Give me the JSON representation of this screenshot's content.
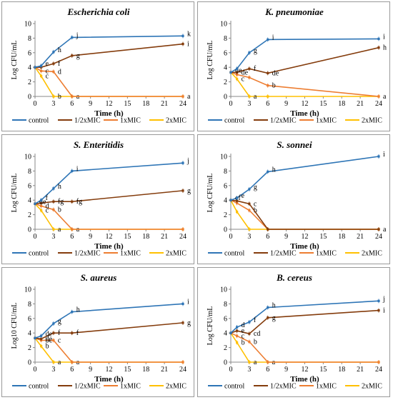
{
  "legend": [
    "control",
    "1/2xMIC",
    "1xMIC",
    "2xMIC"
  ],
  "colors": {
    "control": "#2E75B6",
    "half": "#843C0C",
    "one": "#ED7D31",
    "two": "#FFC000",
    "axis": "#888888",
    "border": "#9a9a9a"
  },
  "chart_data": [
    {
      "type": "line",
      "title": "Escherichia coli",
      "xlabel": "Time (h)",
      "ylabel": "Log CFU/mL",
      "x_ticks": [
        0,
        3,
        6,
        9,
        12,
        15,
        18,
        21,
        24
      ],
      "y_ticks": [
        0,
        2,
        4,
        6,
        8,
        10
      ],
      "xlim": [
        0,
        24
      ],
      "ylim": [
        0,
        10
      ],
      "series": [
        {
          "name": "control",
          "x": [
            0,
            1,
            3,
            6,
            24
          ],
          "y": [
            4.0,
            4.2,
            6.1,
            8.1,
            8.3
          ],
          "labels": [
            "",
            "e",
            "h",
            "j",
            "k"
          ]
        },
        {
          "name": "1/2xMIC",
          "x": [
            0,
            1,
            3,
            6,
            24
          ],
          "y": [
            4.0,
            4.0,
            4.5,
            5.6,
            7.2
          ],
          "labels": [
            "",
            "",
            "f",
            "g",
            "i"
          ]
        },
        {
          "name": "1xMIC",
          "x": [
            0,
            1,
            3,
            6,
            24
          ],
          "y": [
            4.0,
            3.5,
            3.4,
            0,
            0
          ],
          "labels": [
            "",
            "c",
            "d",
            "",
            ""
          ]
        },
        {
          "name": "2xMIC",
          "x": [
            0,
            1,
            3,
            6,
            24
          ],
          "y": [
            4.0,
            2.8,
            0,
            0,
            0
          ],
          "labels": [
            "",
            "c",
            "b",
            "a",
            "a"
          ]
        }
      ]
    },
    {
      "type": "line",
      "title": "K. pneumoniae",
      "xlabel": "Time (h)",
      "ylabel": "Log CFU/mL",
      "x_ticks": [
        0,
        3,
        6,
        9,
        12,
        15,
        18,
        21,
        24
      ],
      "y_ticks": [
        0,
        2,
        4,
        6,
        8,
        10
      ],
      "xlim": [
        0,
        24
      ],
      "ylim": [
        0,
        10
      ],
      "series": [
        {
          "name": "control",
          "x": [
            0,
            1,
            3,
            6,
            24
          ],
          "y": [
            3.3,
            3.8,
            6.0,
            7.8,
            7.9
          ],
          "labels": [
            "de",
            "",
            "g",
            "i",
            "i"
          ]
        },
        {
          "name": "1/2xMIC",
          "x": [
            0,
            1,
            3,
            6,
            24
          ],
          "y": [
            3.3,
            3.3,
            3.8,
            3.2,
            6.7
          ],
          "labels": [
            "",
            "de",
            "f",
            "de",
            "h"
          ]
        },
        {
          "name": "1xMIC",
          "x": [
            0,
            1,
            3,
            6,
            24
          ],
          "y": [
            3.3,
            3.0,
            2.6,
            1.5,
            0
          ],
          "labels": [
            "",
            "",
            "",
            "b",
            "a"
          ]
        },
        {
          "name": "2xMIC",
          "x": [
            0,
            1,
            3,
            6,
            24
          ],
          "y": [
            3.3,
            2.4,
            0,
            0,
            0
          ],
          "labels": [
            "",
            "c",
            "a",
            "",
            ""
          ]
        }
      ]
    },
    {
      "type": "line",
      "title": "S. Enteritidis",
      "xlabel": "Time (h)",
      "ylabel": "Log CFU/mL",
      "x_ticks": [
        0,
        3,
        6,
        9,
        12,
        15,
        18,
        21,
        24
      ],
      "y_ticks": [
        0,
        2,
        4,
        6,
        8,
        10
      ],
      "xlim": [
        0,
        24
      ],
      "ylim": [
        0,
        10
      ],
      "series": [
        {
          "name": "control",
          "x": [
            0,
            1,
            3,
            6,
            24
          ],
          "y": [
            3.5,
            4.0,
            5.6,
            8.0,
            9.1
          ],
          "labels": [
            "de",
            "f",
            "h",
            "i",
            "j"
          ]
        },
        {
          "name": "1/2xMIC",
          "x": [
            0,
            1,
            3,
            6,
            24
          ],
          "y": [
            3.5,
            3.6,
            3.8,
            3.8,
            5.3
          ],
          "labels": [
            "",
            "",
            "fg",
            "fg",
            "g"
          ]
        },
        {
          "name": "1xMIC",
          "x": [
            0,
            1,
            3,
            6,
            24
          ],
          "y": [
            3.5,
            3.2,
            2.7,
            0,
            0
          ],
          "labels": [
            "",
            "d",
            "b",
            "",
            ""
          ]
        },
        {
          "name": "2xMIC",
          "x": [
            0,
            1,
            3,
            6,
            24
          ],
          "y": [
            3.5,
            2.6,
            0,
            0,
            0
          ],
          "labels": [
            "",
            "c",
            "a",
            "a",
            ""
          ]
        }
      ]
    },
    {
      "type": "line",
      "title": "S. sonnei",
      "xlabel": "Time (h)",
      "ylabel": "Log CFU/mL",
      "x_ticks": [
        0,
        3,
        6,
        9,
        12,
        15,
        18,
        21,
        24
      ],
      "y_ticks": [
        0,
        2,
        4,
        6,
        8,
        10
      ],
      "xlim": [
        0,
        24
      ],
      "ylim": [
        0,
        10
      ],
      "series": [
        {
          "name": "control",
          "x": [
            0,
            1,
            3,
            6,
            24
          ],
          "y": [
            4.0,
            4.3,
            5.5,
            7.9,
            10.0
          ],
          "labels": [
            "ef",
            "e",
            "g",
            "h",
            "i"
          ]
        },
        {
          "name": "1/2xMIC",
          "x": [
            0,
            1,
            3,
            6,
            24
          ],
          "y": [
            4.0,
            3.9,
            3.5,
            0,
            0
          ],
          "labels": [
            "",
            "",
            "c",
            "",
            "a"
          ]
        },
        {
          "name": "1xMIC",
          "x": [
            0,
            1,
            3,
            6,
            24
          ],
          "y": [
            4.0,
            3.6,
            2.6,
            0,
            0
          ],
          "labels": [
            "",
            "",
            "b",
            "",
            ""
          ]
        },
        {
          "name": "2xMIC",
          "x": [
            0,
            1,
            3,
            6,
            24
          ],
          "y": [
            4.0,
            2.4,
            0,
            0,
            0
          ],
          "labels": [
            "",
            "",
            "",
            "",
            ""
          ]
        }
      ]
    },
    {
      "type": "line",
      "title": "S. aureus",
      "xlabel": "Time (h)",
      "ylabel": "Log10 CFU/mL",
      "x_ticks": [
        0,
        3,
        6,
        9,
        12,
        15,
        18,
        21,
        24
      ],
      "y_ticks": [
        0,
        2,
        4,
        6,
        8,
        10
      ],
      "xlim": [
        0,
        24
      ],
      "ylim": [
        0,
        10
      ],
      "series": [
        {
          "name": "control",
          "x": [
            0,
            1,
            3,
            6,
            24
          ],
          "y": [
            3.3,
            3.6,
            5.3,
            6.9,
            8.0
          ],
          "labels": [
            "",
            "de",
            "g",
            "h",
            "i"
          ]
        },
        {
          "name": "1/2xMIC",
          "x": [
            0,
            1,
            3,
            6,
            24
          ],
          "y": [
            3.3,
            3.2,
            4.0,
            4.0,
            5.4
          ],
          "labels": [
            "",
            "de",
            "f",
            "f",
            "g"
          ]
        },
        {
          "name": "1xMIC",
          "x": [
            0,
            1,
            3,
            6,
            24
          ],
          "y": [
            3.3,
            3.0,
            3.0,
            0,
            0
          ],
          "labels": [
            "",
            "bc",
            "c",
            "",
            ""
          ]
        },
        {
          "name": "2xMIC",
          "x": [
            0,
            1,
            3,
            6,
            24
          ],
          "y": [
            3.3,
            2.2,
            0,
            0,
            0
          ],
          "labels": [
            "",
            "b",
            "a",
            "a",
            ""
          ]
        }
      ]
    },
    {
      "type": "line",
      "title": "B. cereus",
      "xlabel": "Time (h)",
      "ylabel": "Log CFU/mL",
      "x_ticks": [
        0,
        3,
        6,
        9,
        12,
        15,
        18,
        21,
        24
      ],
      "y_ticks": [
        0,
        2,
        4,
        6,
        8,
        10
      ],
      "xlim": [
        0,
        24
      ],
      "ylim": [
        0,
        10
      ],
      "series": [
        {
          "name": "control",
          "x": [
            0,
            1,
            3,
            6,
            24
          ],
          "y": [
            4.0,
            4.8,
            5.5,
            7.5,
            8.4
          ],
          "labels": [
            "",
            "d",
            "f",
            "h",
            "j"
          ]
        },
        {
          "name": "1/2xMIC",
          "x": [
            0,
            1,
            3,
            6,
            24
          ],
          "y": [
            4.0,
            4.3,
            3.9,
            6.1,
            7.1
          ],
          "labels": [
            "",
            "e",
            "cd",
            "g",
            "i"
          ]
        },
        {
          "name": "1xMIC",
          "x": [
            0,
            1,
            3,
            6,
            24
          ],
          "y": [
            4.0,
            3.6,
            2.8,
            0,
            0
          ],
          "labels": [
            "",
            "c",
            "b",
            "",
            ""
          ]
        },
        {
          "name": "2xMIC",
          "x": [
            0,
            1,
            3,
            6,
            24
          ],
          "y": [
            4.0,
            2.7,
            0,
            0,
            0
          ],
          "labels": [
            "",
            "b",
            "a",
            "a",
            ""
          ]
        }
      ]
    }
  ]
}
